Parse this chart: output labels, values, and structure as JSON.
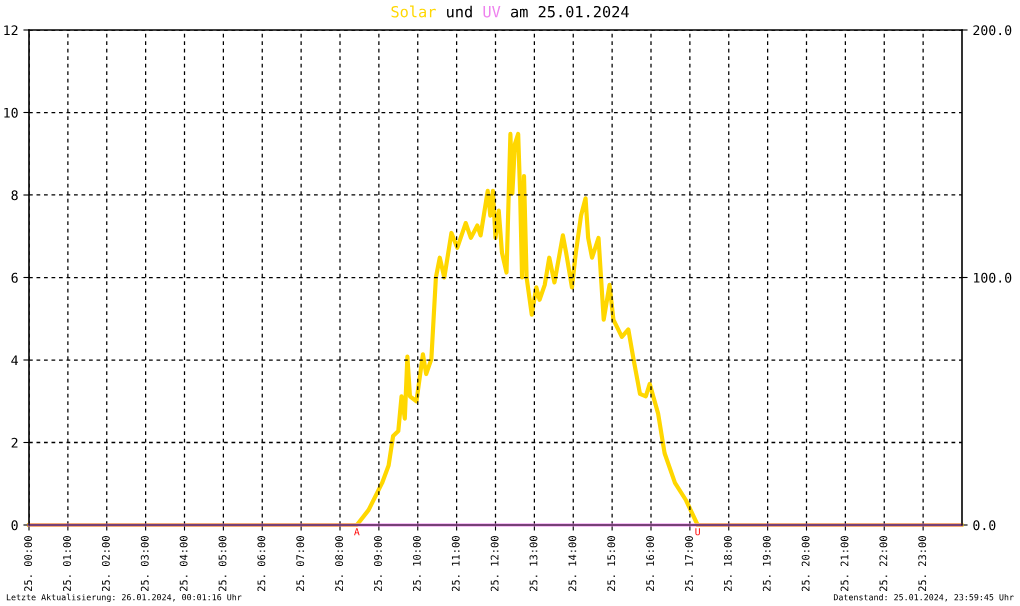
{
  "chart_data": {
    "type": "line",
    "legend": false,
    "xlim": [
      "2024-01-25T00:00",
      "2024-01-26T00:00"
    ],
    "xticks": [
      {
        "value": "2024-01-25T00:00",
        "label": "25. 00:00"
      },
      {
        "value": "2024-01-25T01:00",
        "label": "25. 01:00"
      },
      {
        "value": "2024-01-25T02:00",
        "label": "25. 02:00"
      },
      {
        "value": "2024-01-25T03:00",
        "label": "25. 03:00"
      },
      {
        "value": "2024-01-25T04:00",
        "label": "25. 04:00"
      },
      {
        "value": "2024-01-25T05:00",
        "label": "25. 05:00"
      },
      {
        "value": "2024-01-25T06:00",
        "label": "25. 06:00"
      },
      {
        "value": "2024-01-25T07:00",
        "label": "25. 07:00"
      },
      {
        "value": "2024-01-25T08:00",
        "label": "25. 08:00"
      },
      {
        "value": "2024-01-25T09:00",
        "label": "25. 09:00"
      },
      {
        "value": "2024-01-25T10:00",
        "label": "25. 10:00"
      },
      {
        "value": "2024-01-25T11:00",
        "label": "25. 11:00"
      },
      {
        "value": "2024-01-25T12:00",
        "label": "25. 12:00"
      },
      {
        "value": "2024-01-25T13:00",
        "label": "25. 13:00"
      },
      {
        "value": "2024-01-25T14:00",
        "label": "25. 14:00"
      },
      {
        "value": "2024-01-25T15:00",
        "label": "25. 15:00"
      },
      {
        "value": "2024-01-25T16:00",
        "label": "25. 16:00"
      },
      {
        "value": "2024-01-25T17:00",
        "label": "25. 17:00"
      },
      {
        "value": "2024-01-25T18:00",
        "label": "25. 18:00"
      },
      {
        "value": "2024-01-25T19:00",
        "label": "25. 19:00"
      },
      {
        "value": "2024-01-25T20:00",
        "label": "25. 20:00"
      },
      {
        "value": "2024-01-25T21:00",
        "label": "25. 21:00"
      },
      {
        "value": "2024-01-25T22:00",
        "label": "25. 22:00"
      },
      {
        "value": "2024-01-25T23:00",
        "label": "25. 23:00"
      }
    ],
    "ylim": [
      0,
      12
    ],
    "yticks": [
      0,
      2,
      4,
      6,
      8,
      10,
      12
    ],
    "y2lim": [
      0,
      200
    ],
    "y2ticks": [
      {
        "value": 0,
        "label": "0.0"
      },
      {
        "value": 100,
        "label": "100.0"
      },
      {
        "value": 200,
        "label": "200.0"
      }
    ],
    "grid": true,
    "marker": "none",
    "line_style": "solid",
    "series": [
      {
        "name": "Solar",
        "color": "#ffd700",
        "axis": "y2",
        "x": [
          "2024-01-25T00:00",
          "2024-01-25T08:26",
          "2024-01-25T08:44",
          "2024-01-25T09:05",
          "2024-01-25T09:15",
          "2024-01-25T09:22",
          "2024-01-25T09:30",
          "2024-01-25T09:35",
          "2024-01-25T09:40",
          "2024-01-25T09:44",
          "2024-01-25T09:48",
          "2024-01-25T09:58",
          "2024-01-25T10:08",
          "2024-01-25T10:13",
          "2024-01-25T10:21",
          "2024-01-25T10:28",
          "2024-01-25T10:34",
          "2024-01-25T10:41",
          "2024-01-25T10:52",
          "2024-01-25T11:01",
          "2024-01-25T11:14",
          "2024-01-25T11:22",
          "2024-01-25T11:32",
          "2024-01-25T11:37",
          "2024-01-25T11:48",
          "2024-01-25T11:52",
          "2024-01-25T11:56",
          "2024-01-25T12:00",
          "2024-01-25T12:05",
          "2024-01-25T12:10",
          "2024-01-25T12:17",
          "2024-01-25T12:23",
          "2024-01-25T12:26",
          "2024-01-25T12:30",
          "2024-01-25T12:35",
          "2024-01-25T12:38",
          "2024-01-25T12:41",
          "2024-01-25T12:44",
          "2024-01-25T12:48",
          "2024-01-25T12:56",
          "2024-01-25T13:03",
          "2024-01-25T13:08",
          "2024-01-25T13:16",
          "2024-01-25T13:23",
          "2024-01-25T13:31",
          "2024-01-25T13:44",
          "2024-01-25T13:49",
          "2024-01-25T13:58",
          "2024-01-25T14:04",
          "2024-01-25T14:12",
          "2024-01-25T14:19",
          "2024-01-25T14:23",
          "2024-01-25T14:29",
          "2024-01-25T14:39",
          "2024-01-25T14:47",
          "2024-01-25T14:56",
          "2024-01-25T15:02",
          "2024-01-25T15:15",
          "2024-01-25T15:25",
          "2024-01-25T15:33",
          "2024-01-25T15:43",
          "2024-01-25T15:52",
          "2024-01-25T15:58",
          "2024-01-25T16:11",
          "2024-01-25T16:21",
          "2024-01-25T16:37",
          "2024-01-25T16:54",
          "2024-01-25T17:12",
          "2024-01-25T23:59"
        ],
        "values": [
          0,
          0,
          6,
          17,
          24,
          36,
          38,
          52,
          43,
          68,
          52,
          50,
          69,
          61,
          67,
          100,
          108,
          100,
          118,
          112,
          122,
          116,
          121,
          117,
          135,
          125,
          135,
          116,
          127,
          110,
          102,
          158,
          134,
          154,
          158,
          134,
          100,
          141,
          100,
          85,
          96,
          91,
          97,
          108,
          98,
          117,
          110,
          96,
          110,
          125,
          132,
          116,
          108,
          116,
          83,
          97,
          83,
          76,
          79,
          67,
          53,
          52,
          57,
          45,
          29,
          17,
          10,
          0,
          0
        ]
      },
      {
        "name": "UV",
        "color": "#ee82ee",
        "x": [
          "2024-01-25T00:00",
          "2024-01-25T23:59"
        ],
        "values": [
          0,
          0
        ]
      }
    ],
    "annotations": [
      {
        "text": "A",
        "x": "2024-01-25T08:26",
        "y": 0
      },
      {
        "text": "U",
        "x": "2024-01-25T17:12",
        "y": 0
      },
      "und",
      "am 25.01.2024",
      "Letzte Aktualisierung: 26.01.2024, 00:01:16 Uhr",
      "Datenstand: 25.01.2024, 23:59:45 Uhr"
    ]
  }
}
